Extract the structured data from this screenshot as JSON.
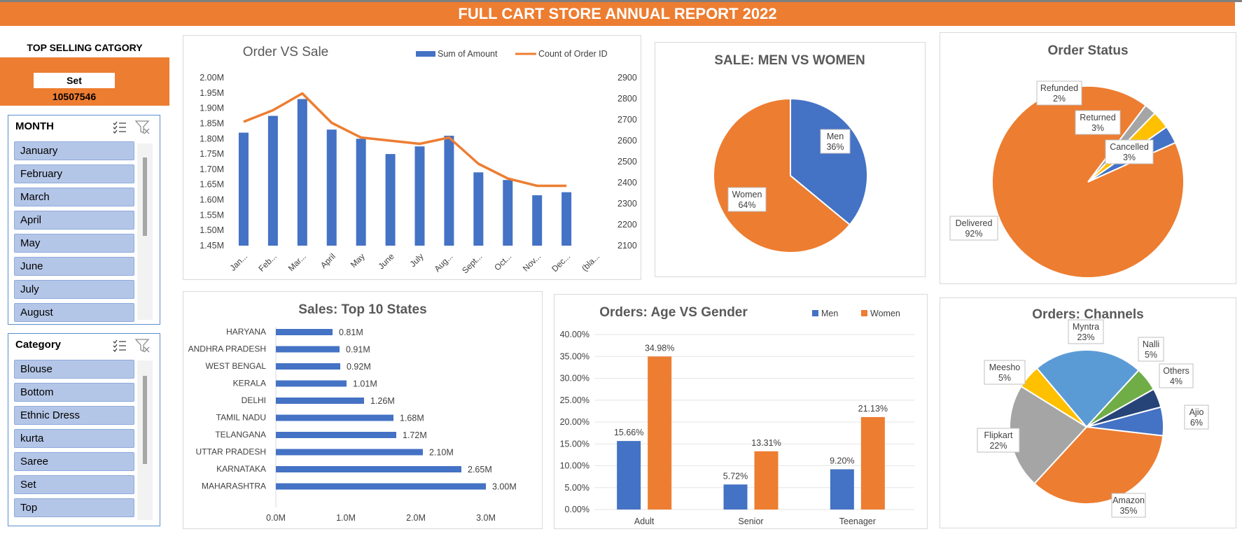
{
  "title": "FULL CART STORE ANNUAL REPORT 2022",
  "top_selling": {
    "label": "TOP SELLING CATGORY",
    "category": "Set",
    "value": "10507546"
  },
  "month_slicer": {
    "title": "MONTH",
    "items": [
      "January",
      "February",
      "March",
      "April",
      "May",
      "June",
      "July",
      "August"
    ]
  },
  "category_slicer": {
    "title": "Category",
    "items": [
      "Blouse",
      "Bottom",
      "Ethnic Dress",
      "kurta",
      "Saree",
      "Set",
      "Top"
    ]
  },
  "colors": {
    "blue": "#4472c4",
    "orange": "#ed7d31",
    "gray": "#a5a5a5",
    "yellow": "#ffc000",
    "lightblue": "#5b9bd5",
    "green": "#70ad47",
    "navy": "#264478",
    "banner": "#ed7d31"
  },
  "chart_data": [
    {
      "id": "order_vs_sale",
      "type": "bar+line",
      "title": "Order VS Sale",
      "categories": [
        "Jan...",
        "Feb...",
        "Mar...",
        "April",
        "May",
        "June",
        "July",
        "Aug...",
        "Sept...",
        "Oct...",
        "Nov...",
        "Dec...",
        "(bla..."
      ],
      "series": [
        {
          "name": "Sum of Amount",
          "type": "bar",
          "axis": "left",
          "values": [
            1.82,
            1.875,
            1.93,
            1.83,
            1.8,
            1.75,
            1.775,
            1.81,
            1.69,
            1.665,
            1.615,
            1.625,
            null
          ]
        },
        {
          "name": "Count of Order ID",
          "type": "line",
          "axis": "right",
          "values": [
            2690,
            2745,
            2825,
            2685,
            2615,
            2600,
            2585,
            2615,
            2490,
            2420,
            2385,
            2385,
            null
          ]
        }
      ],
      "y_left": {
        "min": 1.45,
        "max": 2.0,
        "ticks": [
          "1.45M",
          "1.50M",
          "1.55M",
          "1.60M",
          "1.65M",
          "1.70M",
          "1.75M",
          "1.80M",
          "1.85M",
          "1.90M",
          "1.95M",
          "2.00M"
        ]
      },
      "y_right": {
        "min": 2100,
        "max": 2900,
        "ticks": [
          "2100",
          "2200",
          "2300",
          "2400",
          "2500",
          "2600",
          "2700",
          "2800",
          "2900"
        ]
      },
      "legend": "top-right"
    },
    {
      "id": "men_vs_women",
      "type": "pie",
      "title": "SALE: MEN VS WOMEN",
      "slices": [
        {
          "name": "Men",
          "value": 36,
          "label": "36%",
          "color": "#4472c4"
        },
        {
          "name": "Women",
          "value": 64,
          "label": "64%",
          "color": "#ed7d31"
        }
      ]
    },
    {
      "id": "order_status",
      "type": "pie",
      "title": "Order Status",
      "slices": [
        {
          "name": "Refunded",
          "value": 2,
          "label": "2%",
          "color": "#a5a5a5"
        },
        {
          "name": "Returned",
          "value": 3,
          "label": "3%",
          "color": "#ffc000"
        },
        {
          "name": "Cancelled",
          "value": 3,
          "label": "3%",
          "color": "#4472c4"
        },
        {
          "name": "Delivered",
          "value": 92,
          "label": "92%",
          "color": "#ed7d31"
        }
      ]
    },
    {
      "id": "top_states",
      "type": "bar",
      "orientation": "horizontal",
      "title": "Sales: Top 10 States",
      "categories": [
        "HARYANA",
        "ANDHRA PRADESH",
        "WEST BENGAL",
        "KERALA",
        "DELHI",
        "TAMIL NADU",
        "TELANGANA",
        "UTTAR PRADESH",
        "KARNATAKA",
        "MAHARASHTRA"
      ],
      "values": [
        0.81,
        0.91,
        0.92,
        1.01,
        1.26,
        1.68,
        1.72,
        2.1,
        2.65,
        3.0
      ],
      "value_labels": [
        "0.81M",
        "0.91M",
        "0.92M",
        "1.01M",
        "1.26M",
        "1.68M",
        "1.72M",
        "2.10M",
        "2.65M",
        "3.00M"
      ],
      "x_ticks": [
        "0.0M",
        "1.0M",
        "2.0M",
        "3.0M"
      ],
      "xlim": [
        0,
        3.0
      ]
    },
    {
      "id": "age_vs_gender",
      "type": "bar",
      "title": "Orders: Age VS Gender",
      "categories": [
        "Adult",
        "Senior",
        "Teenager"
      ],
      "series": [
        {
          "name": "Men",
          "values": [
            15.66,
            5.72,
            9.2
          ],
          "labels": [
            "15.66%",
            "5.72%",
            "9.20%"
          ],
          "color": "#4472c4"
        },
        {
          "name": "Women",
          "values": [
            34.98,
            13.31,
            21.13
          ],
          "labels": [
            "34.98%",
            "13.31%",
            "21.13%"
          ],
          "color": "#ed7d31"
        }
      ],
      "y_ticks": [
        "0.00%",
        "5.00%",
        "10.00%",
        "15.00%",
        "20.00%",
        "25.00%",
        "30.00%",
        "35.00%",
        "40.00%"
      ],
      "ylim": [
        0,
        40
      ],
      "legend": "top-right"
    },
    {
      "id": "channels",
      "type": "pie",
      "title": "Orders: Channels",
      "slices": [
        {
          "name": "Ajio",
          "value": 6,
          "label": "6%",
          "color": "#4472c4"
        },
        {
          "name": "Amazon",
          "value": 35,
          "label": "35%",
          "color": "#ed7d31"
        },
        {
          "name": "Flipkart",
          "value": 22,
          "label": "22%",
          "color": "#a5a5a5"
        },
        {
          "name": "Meesho",
          "value": 5,
          "label": "5%",
          "color": "#ffc000"
        },
        {
          "name": "Myntra",
          "value": 23,
          "label": "23%",
          "color": "#5b9bd5"
        },
        {
          "name": "Nalli",
          "value": 5,
          "label": "5%",
          "color": "#70ad47"
        },
        {
          "name": "Others",
          "value": 4,
          "label": "4%",
          "color": "#264478"
        }
      ]
    }
  ]
}
